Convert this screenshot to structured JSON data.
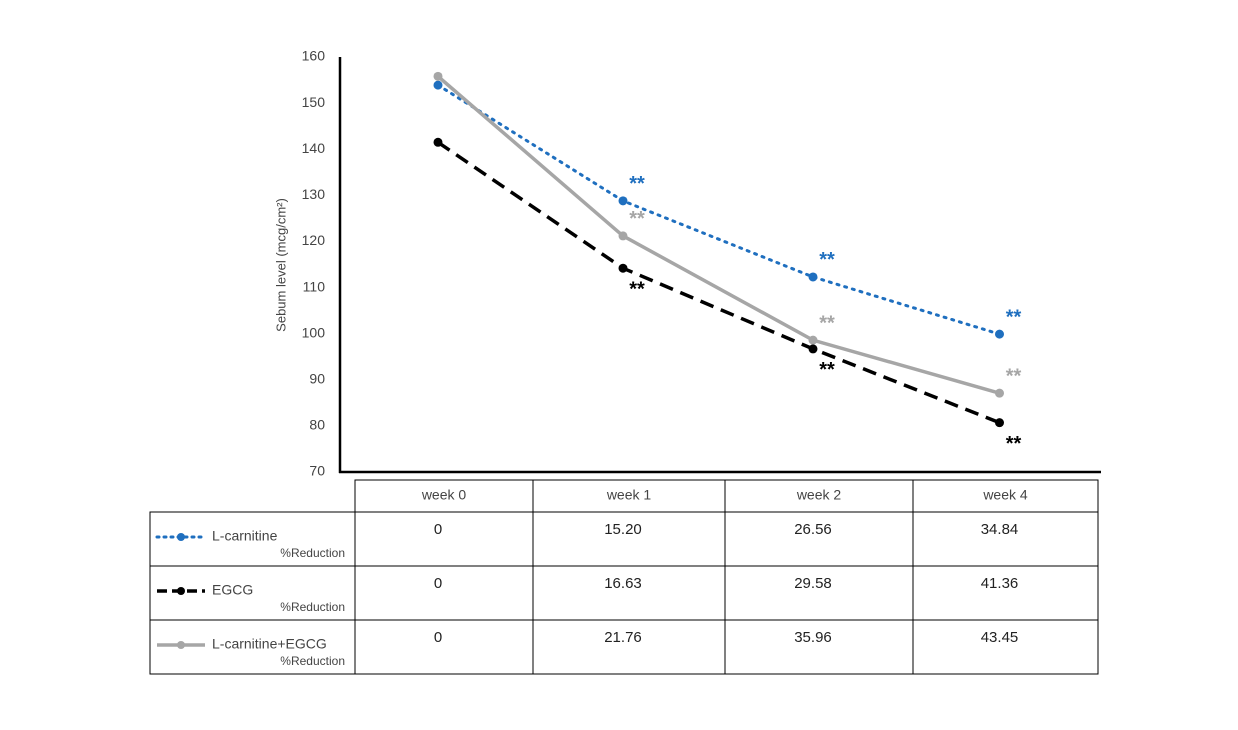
{
  "chart_data": {
    "type": "line",
    "y_label": "Sebum level (mcg/cm²)",
    "categories": [
      "week 0",
      "week 1",
      "week 2",
      "week 4"
    ],
    "ylim": [
      70,
      160
    ],
    "yticks": [
      70,
      80,
      90,
      100,
      110,
      120,
      130,
      140,
      150,
      160
    ],
    "series": [
      {
        "name": "L-carnitine",
        "color": "#1f6fbf",
        "dash": "dotted",
        "values": [
          153.9,
          128.8,
          112.3,
          99.9
        ],
        "significance": [
          null,
          "**",
          "**",
          "**"
        ]
      },
      {
        "name": "EGCG",
        "color": "#000000",
        "dash": "dashed",
        "values": [
          141.5,
          114.2,
          96.7,
          80.7
        ],
        "significance": [
          null,
          "**",
          "**",
          "**"
        ]
      },
      {
        "name": "L-carnitine+EGCG",
        "color": "#a6a6a6",
        "dash": "solid",
        "values": [
          155.8,
          121.2,
          98.6,
          87.1
        ],
        "significance": [
          null,
          "**",
          "**",
          "**"
        ]
      }
    ],
    "table": {
      "row_label": "%Reduction",
      "rows": [
        [
          "0",
          "15.20",
          "26.56",
          "34.84"
        ],
        [
          "0",
          "16.63",
          "29.58",
          "41.36"
        ],
        [
          "0",
          "21.76",
          "35.96",
          "43.45"
        ]
      ]
    }
  }
}
